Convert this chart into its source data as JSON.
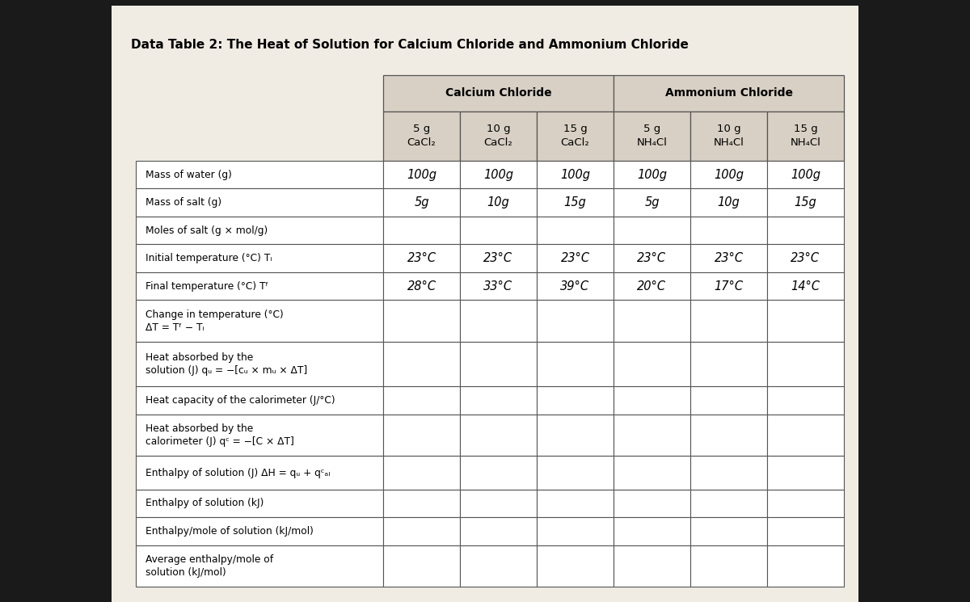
{
  "title": "Data Table 2: The Heat of Solution for Calcium Chloride and Ammonium Chloride",
  "outer_bg": "#1a1a1a",
  "paper_color": "#f0ece4",
  "table_header_bg": "#d8d0c4",
  "table_cell_bg": "#ffffff",
  "col_header1": "Calcium Chloride",
  "col_header2": "Ammonium Chloride",
  "sub_headers": [
    "5 g\nCaCl₂",
    "10 g\nCaCl₂",
    "15 g\nCaCl₂",
    "5 g\nNH₄Cl",
    "10 g\nNH₄Cl",
    "15 g\nNH₄Cl"
  ],
  "row_labels": [
    "Mass of water (g)",
    "Mass of salt (g)",
    "Moles of salt (g × mol/g)",
    "Initial temperature (°C) Tᵢ",
    "Final temperature (°C) Tᶠ",
    "Change in temperature (°C)\nΔT = Tᶠ − Tᵢ",
    "Heat absorbed by the\nsolution (J) qᵤ = −[cᵤ × mᵤ × ΔT]",
    "Heat capacity of the calorimeter (J/°C)",
    "Heat absorbed by the\ncalorimeter (J) qᶜ = −[C × ΔT]",
    "Enthalpy of solution (J) ΔH = qᵤ + qᶜₐₗ",
    "Enthalpy of solution (kJ)",
    "Enthalpy/mole of solution (kJ/mol)",
    "Average enthalpy/mole of\nsolution (kJ/mol)"
  ],
  "cell_data": [
    [
      "100g",
      "100g",
      "100g",
      "100g",
      "100g",
      "100g"
    ],
    [
      "5g",
      "10g",
      "15g",
      "5g",
      "10g",
      "15g"
    ],
    [
      "",
      "",
      "",
      "",
      "",
      ""
    ],
    [
      "23°C",
      "23°C",
      "23°C",
      "23°C",
      "23°C",
      "23°C"
    ],
    [
      "28°C",
      "33°C",
      "39°C",
      "20°C",
      "17°C",
      "14°C"
    ],
    [
      "",
      "",
      "",
      "",
      "",
      ""
    ],
    [
      "",
      "",
      "",
      "",
      "",
      ""
    ],
    [
      "",
      "",
      "",
      "",
      "",
      ""
    ],
    [
      "",
      "",
      "",
      "",
      "",
      ""
    ],
    [
      "",
      "",
      "",
      "",
      "",
      ""
    ],
    [
      "",
      "",
      "",
      "",
      "",
      ""
    ],
    [
      "",
      "",
      "",
      "",
      "",
      ""
    ],
    [
      "",
      "",
      "",
      "",
      "",
      ""
    ]
  ],
  "row_heights_rel": [
    1.0,
    1.0,
    1.0,
    1.0,
    1.0,
    1.5,
    1.6,
    1.0,
    1.5,
    1.2,
    1.0,
    1.0,
    1.5
  ]
}
